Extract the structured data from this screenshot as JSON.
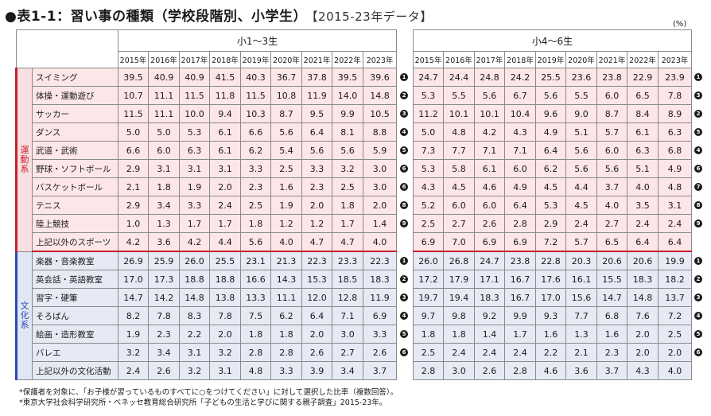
{
  "title": "●表1-1：習い事の種類（学校段階別、小学生）",
  "subtitle": "【2015-23年データ】",
  "unit": "(%)",
  "groups": {
    "left": "小1〜3生",
    "right": "小4〜6生"
  },
  "years": [
    "2015年",
    "2016年",
    "2017年",
    "2018年",
    "2019年",
    "2020年",
    "2021年",
    "2022年",
    "2023年"
  ],
  "categories": [
    {
      "name": "運動系",
      "kind": "sport",
      "rows": [
        {
          "label": "スイミング",
          "left": [
            "39.5",
            "40.9",
            "40.9",
            "41.5",
            "40.3",
            "36.7",
            "37.8",
            "39.5",
            "39.6"
          ],
          "left_rank": "1",
          "right": [
            "24.7",
            "24.4",
            "24.8",
            "24.2",
            "25.5",
            "23.6",
            "23.8",
            "22.9",
            "23.9"
          ],
          "right_rank": "1"
        },
        {
          "label": "体操・運動遊び",
          "left": [
            "10.7",
            "11.1",
            "11.5",
            "11.8",
            "11.5",
            "10.8",
            "11.9",
            "14.0",
            "14.8"
          ],
          "left_rank": "2",
          "right": [
            "5.3",
            "5.5",
            "5.6",
            "6.7",
            "5.6",
            "5.5",
            "6.0",
            "6.5",
            "7.8"
          ],
          "right_rank": "3"
        },
        {
          "label": "サッカー",
          "left": [
            "11.5",
            "11.1",
            "10.0",
            "9.4",
            "10.3",
            "8.7",
            "9.5",
            "9.9",
            "10.5"
          ],
          "left_rank": "3",
          "right": [
            "11.2",
            "10.1",
            "10.1",
            "10.4",
            "9.6",
            "9.0",
            "8.7",
            "8.4",
            "8.9"
          ],
          "right_rank": "2"
        },
        {
          "label": "ダンス",
          "left": [
            "5.0",
            "5.0",
            "5.3",
            "6.1",
            "6.6",
            "5.6",
            "6.4",
            "8.1",
            "8.8"
          ],
          "left_rank": "4",
          "right": [
            "5.0",
            "4.8",
            "4.2",
            "4.3",
            "4.9",
            "5.1",
            "5.7",
            "6.1",
            "6.3"
          ],
          "right_rank": "5"
        },
        {
          "label": "武道・武術",
          "left": [
            "6.6",
            "6.0",
            "6.3",
            "6.1",
            "6.2",
            "5.4",
            "5.6",
            "5.6",
            "5.9"
          ],
          "left_rank": "5",
          "right": [
            "7.3",
            "7.7",
            "7.1",
            "7.1",
            "6.4",
            "5.6",
            "6.0",
            "6.3",
            "6.8"
          ],
          "right_rank": "4"
        },
        {
          "label": "野球・ソフトボール",
          "left": [
            "2.9",
            "3.1",
            "3.1",
            "3.1",
            "3.3",
            "2.5",
            "3.3",
            "3.2",
            "3.0"
          ],
          "left_rank": "6",
          "right": [
            "5.3",
            "5.8",
            "6.1",
            "6.0",
            "6.2",
            "5.6",
            "5.6",
            "5.1",
            "4.9"
          ],
          "right_rank": "6"
        },
        {
          "label": "バスケットボール",
          "left": [
            "2.1",
            "1.8",
            "1.9",
            "2.0",
            "2.3",
            "1.6",
            "2.3",
            "2.5",
            "3.0"
          ],
          "left_rank": "6",
          "right": [
            "4.3",
            "4.5",
            "4.6",
            "4.9",
            "4.5",
            "4.4",
            "3.7",
            "4.0",
            "4.8"
          ],
          "right_rank": "7"
        },
        {
          "label": "テニス",
          "left": [
            "2.9",
            "3.4",
            "3.3",
            "2.4",
            "2.5",
            "1.9",
            "2.0",
            "1.8",
            "2.0"
          ],
          "left_rank": "8",
          "right": [
            "5.2",
            "6.0",
            "6.0",
            "6.4",
            "5.3",
            "4.5",
            "4.0",
            "3.5",
            "3.1"
          ],
          "right_rank": "8"
        },
        {
          "label": "陸上競技",
          "left": [
            "1.0",
            "1.3",
            "1.7",
            "1.7",
            "1.8",
            "1.2",
            "1.2",
            "1.7",
            "1.4"
          ],
          "left_rank": "9",
          "right": [
            "2.5",
            "2.7",
            "2.6",
            "2.8",
            "2.9",
            "2.4",
            "2.7",
            "2.4",
            "2.4"
          ],
          "right_rank": "9"
        },
        {
          "label": "上記以外のスポーツ",
          "left": [
            "4.2",
            "3.6",
            "4.2",
            "4.4",
            "5.6",
            "4.0",
            "4.7",
            "4.7",
            "4.0"
          ],
          "left_rank": "",
          "right": [
            "6.9",
            "7.0",
            "6.9",
            "6.9",
            "7.2",
            "5.7",
            "6.5",
            "6.4",
            "6.4"
          ],
          "right_rank": ""
        }
      ]
    },
    {
      "name": "文化系",
      "kind": "cult",
      "rows": [
        {
          "label": "楽器・音楽教室",
          "left": [
            "26.9",
            "25.9",
            "26.0",
            "25.5",
            "23.1",
            "21.3",
            "22.3",
            "23.3",
            "22.3"
          ],
          "left_rank": "1",
          "right": [
            "26.0",
            "26.8",
            "24.7",
            "23.8",
            "22.8",
            "20.3",
            "20.6",
            "20.6",
            "19.9"
          ],
          "right_rank": "1"
        },
        {
          "label": "英会話・英語教室",
          "left": [
            "17.0",
            "17.3",
            "18.8",
            "18.8",
            "16.6",
            "14.3",
            "15.3",
            "18.5",
            "18.3"
          ],
          "left_rank": "2",
          "right": [
            "17.2",
            "17.9",
            "17.1",
            "16.7",
            "17.6",
            "16.1",
            "15.5",
            "18.3",
            "18.2"
          ],
          "right_rank": "2"
        },
        {
          "label": "習字・硬筆",
          "left": [
            "14.7",
            "14.2",
            "14.8",
            "13.8",
            "13.3",
            "11.1",
            "12.0",
            "12.8",
            "11.9"
          ],
          "left_rank": "3",
          "right": [
            "19.7",
            "19.4",
            "18.3",
            "16.7",
            "17.0",
            "15.6",
            "14.7",
            "14.8",
            "13.7"
          ],
          "right_rank": "3"
        },
        {
          "label": "そろばん",
          "left": [
            "8.2",
            "7.8",
            "8.3",
            "7.8",
            "7.5",
            "6.2",
            "6.4",
            "7.1",
            "6.9"
          ],
          "left_rank": "4",
          "right": [
            "9.7",
            "9.8",
            "9.2",
            "9.9",
            "9.3",
            "7.7",
            "6.8",
            "7.6",
            "7.2"
          ],
          "right_rank": "4"
        },
        {
          "label": "絵画・造形教室",
          "left": [
            "1.9",
            "2.3",
            "2.2",
            "2.0",
            "1.8",
            "1.8",
            "2.0",
            "3.0",
            "3.3"
          ],
          "left_rank": "5",
          "right": [
            "1.8",
            "1.8",
            "1.4",
            "1.7",
            "1.6",
            "1.3",
            "1.6",
            "2.0",
            "2.5"
          ],
          "right_rank": "5"
        },
        {
          "label": "バレエ",
          "left": [
            "3.2",
            "3.4",
            "3.1",
            "3.2",
            "2.8",
            "2.8",
            "2.6",
            "2.7",
            "2.6"
          ],
          "left_rank": "6",
          "right": [
            "2.5",
            "2.4",
            "2.4",
            "2.4",
            "2.2",
            "2.1",
            "2.3",
            "2.0",
            "2.0"
          ],
          "right_rank": "6"
        },
        {
          "label": "上記以外の文化活動",
          "left": [
            "2.4",
            "2.6",
            "3.2",
            "3.1",
            "4.8",
            "3.3",
            "3.9",
            "3.4",
            "3.7"
          ],
          "left_rank": "",
          "right": [
            "2.8",
            "3.0",
            "2.6",
            "2.8",
            "4.6",
            "3.6",
            "3.7",
            "4.3",
            "4.0"
          ],
          "right_rank": ""
        }
      ]
    }
  ],
  "notes": [
    "*保護者を対象に、「お子様が習っているものすべてに○をつけてください」に対して選択した比率（複数回答）。",
    "*東京大学社会科学研究所・ベネッセ教育総合研究所「子どもの生活と学びに関する親子調査」2015-23年。"
  ],
  "colors": {
    "sport_bg": "#fce6e8",
    "sport_accent": "#c8202a",
    "cult_bg": "#e6eaf5",
    "cult_accent": "#2b49b5"
  }
}
